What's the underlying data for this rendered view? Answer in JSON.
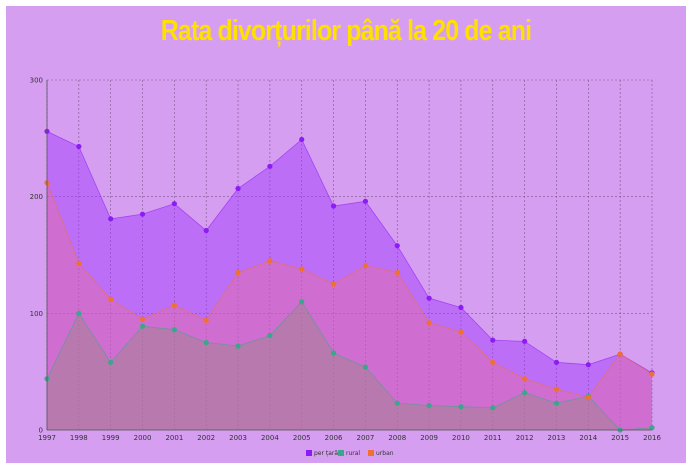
{
  "chart_data": {
    "type": "area",
    "title": "Rata divorțurilor până la 20 de ani",
    "xlabel": "",
    "ylabel": "",
    "ylim": [
      0,
      300
    ],
    "yticks": [
      0,
      100,
      200,
      300
    ],
    "grid": true,
    "legend_position": "bottom-center",
    "categories": [
      "1997",
      "1998",
      "1999",
      "2000",
      "2001",
      "2002",
      "2003",
      "2004",
      "2005",
      "2006",
      "2007",
      "2008",
      "2009",
      "2010",
      "2011",
      "2012",
      "2013",
      "2014",
      "2015",
      "2016"
    ],
    "series": [
      {
        "name": "per țară",
        "color": "#8b1cf5",
        "fill": "rgba(160,50,255,0.45)",
        "values": [
          256,
          243,
          181,
          185,
          194,
          171,
          207,
          226,
          249,
          192,
          196,
          158,
          113,
          105,
          77,
          76,
          58,
          56,
          65,
          49
        ]
      },
      {
        "name": "rural",
        "color": "#3aa68a",
        "fill": "rgba(105,150,120,0.45)",
        "values": [
          44,
          100,
          58,
          89,
          86,
          75,
          72,
          81,
          110,
          66,
          54,
          23,
          21,
          20,
          19,
          32,
          23,
          29,
          0,
          2
        ]
      },
      {
        "name": "urban",
        "color": "#f07030",
        "fill": "rgba(235,110,150,0.40)",
        "values": [
          212,
          143,
          112,
          95,
          107,
          94,
          135,
          145,
          138,
          125,
          141,
          135,
          92,
          84,
          58,
          44,
          35,
          28,
          65,
          48
        ]
      }
    ]
  }
}
